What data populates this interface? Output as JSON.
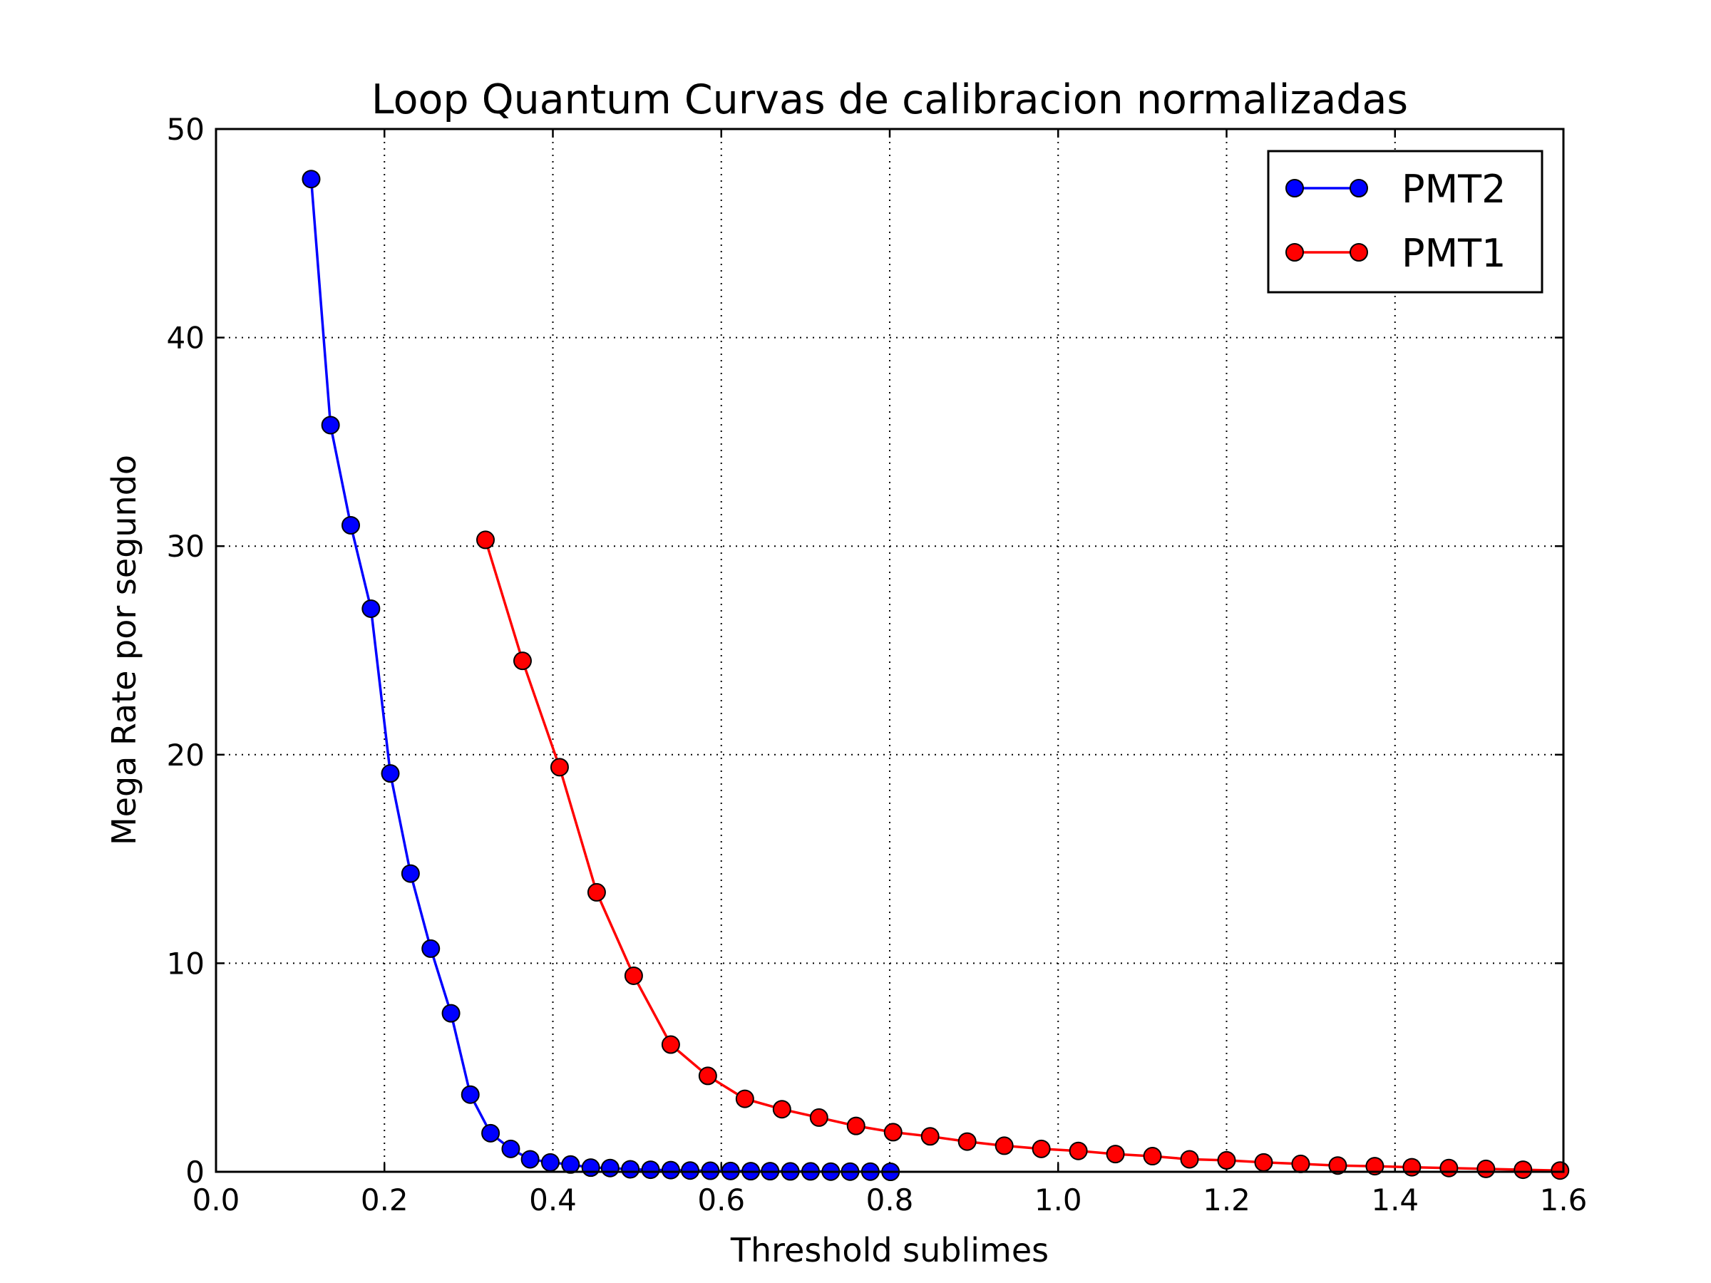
{
  "chart_data": {
    "type": "line",
    "title": "Loop Quantum Curvas de calibracion normalizadas",
    "xlabel": "Threshold sublimes",
    "ylabel": "Mega Rate por segundo",
    "xlim": [
      0.0,
      1.6
    ],
    "ylim": [
      0,
      50
    ],
    "xticks": [
      "0.0",
      "0.2",
      "0.4",
      "0.6",
      "0.8",
      "1.0",
      "1.2",
      "1.4",
      "1.6"
    ],
    "yticks": [
      "0",
      "10",
      "20",
      "30",
      "40",
      "50"
    ],
    "grid": true,
    "legend_position": "top-right",
    "series": [
      {
        "name": "PMT2",
        "color": "#0000ff",
        "marker": "circle",
        "x": [
          0.113,
          0.136,
          0.16,
          0.184,
          0.207,
          0.231,
          0.255,
          0.279,
          0.302,
          0.326,
          0.35,
          0.373,
          0.397,
          0.421,
          0.445,
          0.468,
          0.492,
          0.516,
          0.54,
          0.563,
          0.587,
          0.611,
          0.635,
          0.658,
          0.682,
          0.706,
          0.73,
          0.753,
          0.777,
          0.801
        ],
        "y": [
          47.6,
          35.8,
          31.0,
          27.0,
          19.1,
          14.3,
          10.7,
          7.6,
          3.7,
          1.85,
          1.1,
          0.6,
          0.45,
          0.35,
          0.2,
          0.18,
          0.12,
          0.1,
          0.08,
          0.06,
          0.05,
          0.04,
          0.03,
          0.03,
          0.02,
          0.02,
          0.01,
          0.01,
          0.01,
          0.0
        ]
      },
      {
        "name": "PMT1",
        "color": "#ff0000",
        "marker": "circle",
        "x": [
          0.32,
          0.364,
          0.408,
          0.452,
          0.496,
          0.54,
          0.584,
          0.628,
          0.672,
          0.716,
          0.76,
          0.804,
          0.848,
          0.892,
          0.936,
          0.98,
          1.024,
          1.068,
          1.112,
          1.156,
          1.2,
          1.244,
          1.288,
          1.332,
          1.376,
          1.42,
          1.464,
          1.508,
          1.552,
          1.596
        ],
        "y": [
          30.3,
          24.5,
          19.4,
          13.4,
          9.4,
          6.1,
          4.6,
          3.5,
          3.0,
          2.6,
          2.2,
          1.9,
          1.7,
          1.45,
          1.25,
          1.1,
          1.0,
          0.85,
          0.75,
          0.6,
          0.55,
          0.45,
          0.38,
          0.3,
          0.27,
          0.22,
          0.18,
          0.14,
          0.1,
          0.06
        ]
      }
    ]
  }
}
